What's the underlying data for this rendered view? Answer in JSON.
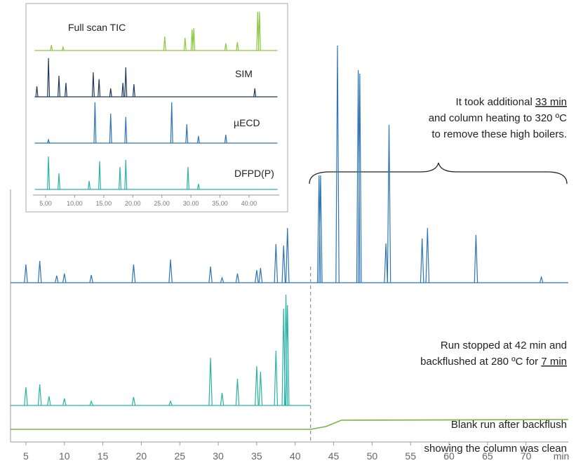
{
  "chart_data": [
    {
      "type": "line",
      "x_label": "min",
      "xlim": [
        3,
        75.5
      ],
      "ylim": [
        0,
        570
      ],
      "xticks": [
        5,
        10,
        15,
        20,
        25,
        30,
        35,
        40,
        45,
        50,
        55,
        60,
        65,
        70
      ],
      "series": [
        {
          "color": "#2e75b6",
          "baseline": 227,
          "x": [
            5.0,
            6.8,
            9.0,
            10.0,
            13.5,
            19.0,
            23.8,
            29.0,
            30.5,
            32.5,
            35.0,
            35.5,
            37.5,
            38.5,
            39.0,
            43.1,
            43.3,
            45.5,
            48.2,
            48.4,
            51.8,
            52.2,
            56.5,
            57.2,
            63.5,
            72.0
          ],
          "values": [
            253,
            258,
            237,
            240,
            238,
            253,
            260,
            250,
            234,
            240,
            245,
            248,
            282,
            280,
            305,
            380,
            380,
            565,
            530,
            525,
            283,
            452,
            290,
            305,
            295,
            235
          ]
        },
        {
          "color": "#2ab3a6",
          "baseline": 52,
          "stopped_at": 42,
          "x": [
            5.0,
            6.8,
            8.0,
            10.0,
            13.5,
            19.0,
            23.8,
            29.0,
            30.5,
            32.5,
            35.0,
            35.5,
            37.5,
            38.5,
            38.8,
            39.0
          ],
          "values": [
            78,
            82,
            65,
            62,
            58,
            64,
            58,
            120,
            70,
            90,
            108,
            100,
            130,
            190,
            210,
            195
          ]
        },
        {
          "color": "#7cb342",
          "x": [
            3,
            42,
            44,
            46,
            75.5
          ],
          "values": [
            18,
            18,
            22,
            31,
            32
          ]
        }
      ],
      "annotations": [
        [
          [
            "It took additional ",
            "33 min"
          ],
          [
            "and column heating to 320 ºC"
          ],
          [
            "to remove these high boilers."
          ]
        ],
        [
          [
            "Run stopped at 42 min and"
          ],
          [
            "backflushed at 280 ºC for ",
            "7 min"
          ]
        ],
        [
          [
            "Blank run after backflush"
          ],
          [
            "showing the column was clean"
          ]
        ]
      ]
    },
    {
      "type": "line",
      "xlim": [
        2.83,
        45.2
      ],
      "ylim": [
        0,
        100
      ],
      "xticks": [
        {
          "value": 5,
          "label": "5.00"
        },
        {
          "value": 10,
          "label": "10.00"
        },
        {
          "value": 15,
          "label": "15.00"
        },
        {
          "value": 20,
          "label": "20.00"
        },
        {
          "value": 25,
          "label": "25.00"
        },
        {
          "value": 30,
          "label": "30.00"
        },
        {
          "value": 35,
          "label": "35.00"
        },
        {
          "value": 40,
          "label": "40.00"
        }
      ],
      "series": [
        {
          "name": "Full scan TIC",
          "color": "#8dc63f",
          "baseline": 0,
          "x": [
            6,
            8,
            25.5,
            29,
            30.2,
            30.5,
            36,
            38,
            41.5,
            41.8
          ],
          "values": [
            13,
            8,
            33,
            30,
            50,
            53,
            17,
            20,
            92,
            92
          ]
        },
        {
          "name": "SIM",
          "color": "#1f3b5c",
          "baseline": 0,
          "x": [
            3.5,
            5.5,
            7.3,
            8.5,
            13.2,
            14.2,
            16.2,
            18.3,
            18.8,
            20.2,
            41
          ],
          "values": [
            25,
            92,
            50,
            33,
            58,
            42,
            20,
            33,
            70,
            30,
            20
          ]
        },
        {
          "name": "µECD",
          "color": "#2e75b6",
          "baseline": 0,
          "x": [
            5.5,
            13.5,
            16.2,
            18.8,
            26.7,
            29.3,
            31.3,
            36
          ],
          "values": [
            8,
            97,
            70,
            62,
            97,
            45,
            17,
            20
          ]
        },
        {
          "name": "DFPD(P)",
          "color": "#2ab3a6",
          "baseline": 0,
          "x": [
            5.5,
            7.3,
            12.5,
            14.3,
            17.8,
            18.8,
            29.5,
            31.3
          ],
          "values": [
            78,
            38,
            20,
            67,
            53,
            70,
            53,
            13
          ]
        }
      ]
    }
  ]
}
